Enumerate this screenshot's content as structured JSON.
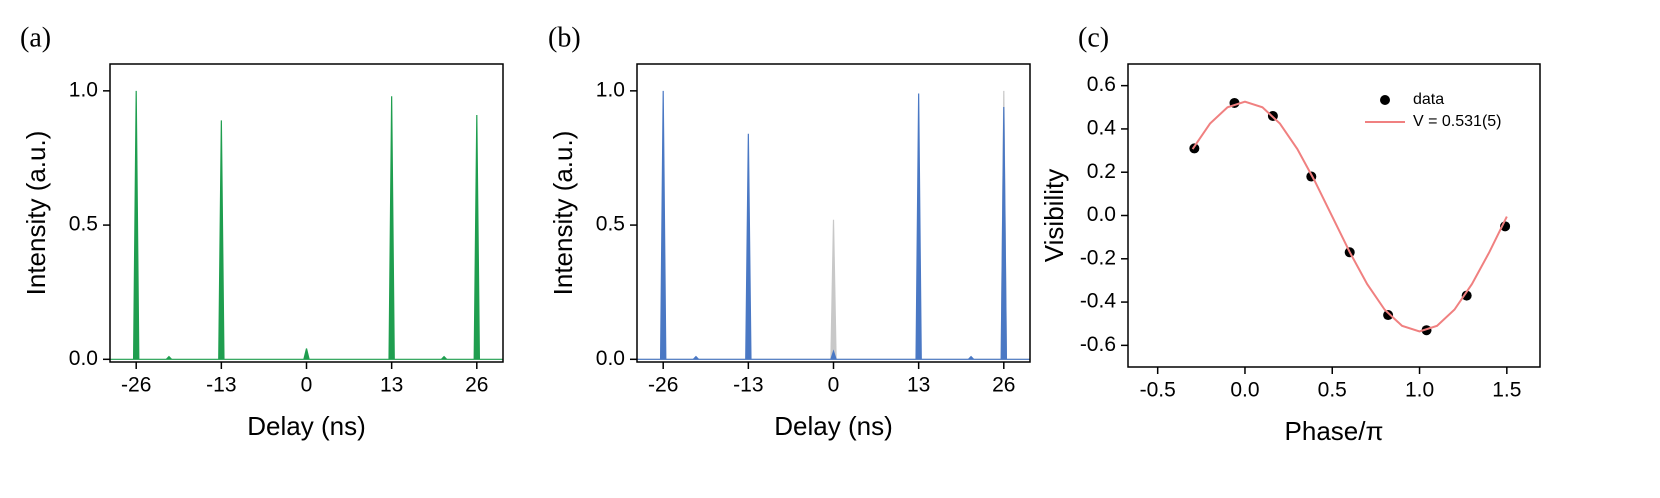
{
  "chart_data": [
    {
      "type": "area",
      "label": "(a)",
      "x_label": "Delay (ns)",
      "y_label": "Intensity (a.u.)",
      "x": [
        -30,
        -26.4,
        -26,
        -25.6,
        -21.4,
        -21,
        -20.6,
        -13.4,
        -13,
        -12.6,
        -0.4,
        0,
        0.4,
        12.6,
        13,
        13.4,
        20.6,
        21,
        21.4,
        25.6,
        26,
        26.4,
        30
      ],
      "series": [
        {
          "color": "#1f9e4f",
          "values": [
            0,
            0,
            1.0,
            0,
            0,
            0.01,
            0,
            0,
            0.89,
            0,
            0,
            0.04,
            0,
            0,
            0.98,
            0,
            0,
            0.01,
            0,
            0,
            0.91,
            0,
            0
          ]
        }
      ],
      "xlim": [
        -30,
        30
      ],
      "xticks": [
        -26,
        -13,
        0,
        13,
        26
      ],
      "ylim": [
        -0.01,
        1.1
      ],
      "yticks": [
        {
          "value": 0,
          "label": "0.0"
        },
        0.5,
        {
          "value": 1,
          "label": "1.0"
        }
      ]
    },
    {
      "type": "area",
      "label": "(b)",
      "x_label": "Delay (ns)",
      "y_label": "Intensity (a.u.)",
      "x": [
        -30,
        -26.4,
        -26,
        -25.6,
        -21.4,
        -21,
        -20.6,
        -13.4,
        -13,
        -12.6,
        -0.4,
        0,
        0.4,
        12.6,
        13,
        13.4,
        20.6,
        21,
        21.4,
        25.6,
        26,
        26.4,
        30
      ],
      "series": [
        {
          "color": "#c8c8c8",
          "values": [
            0,
            0,
            0,
            0,
            0,
            0,
            0,
            0,
            0,
            0,
            0,
            0.52,
            0,
            0,
            0,
            0,
            0,
            0,
            0,
            0,
            1.0,
            0,
            0
          ]
        },
        {
          "color": "#4a78c4",
          "values": [
            0,
            0,
            1.0,
            0,
            0,
            0.01,
            0,
            0,
            0.84,
            0,
            0,
            0.03,
            0,
            0,
            0.99,
            0,
            0,
            0.01,
            0,
            0,
            0.94,
            0,
            0
          ]
        }
      ],
      "xlim": [
        -30,
        30
      ],
      "xticks": [
        -26,
        -13,
        0,
        13,
        26
      ],
      "ylim": [
        -0.01,
        1.1
      ],
      "yticks": [
        {
          "value": 0,
          "label": "0.0"
        },
        0.5,
        {
          "value": 1,
          "label": "1.0"
        }
      ]
    },
    {
      "type": "scatter",
      "label": "(c)",
      "x_label": "Phase/π",
      "y_label": "Visibility",
      "legend": "upper right",
      "series": [
        {
          "name": "data",
          "color": "#000000",
          "x": [
            -0.29,
            -0.06,
            0.16,
            0.38,
            0.6,
            0.82,
            1.04,
            1.27,
            1.49
          ],
          "values": [
            0.31,
            0.52,
            0.46,
            0.18,
            -0.17,
            -0.46,
            -0.53,
            -0.37,
            -0.05
          ],
          "errors": [
            0.015,
            0.015,
            0.015,
            0.015,
            0.015,
            0.015,
            0.015,
            0.015,
            0.015
          ]
        },
        {
          "name": "V = 0.531(5)",
          "color": "#f08080",
          "x": [
            -0.3,
            -0.2,
            -0.1,
            0,
            0.1,
            0.2,
            0.3,
            0.4,
            0.5,
            0.6,
            0.7,
            0.8,
            0.9,
            1.0,
            1.1,
            1.2,
            1.3,
            1.4,
            1.5
          ],
          "values": [
            0.307,
            0.425,
            0.5,
            0.526,
            0.5,
            0.425,
            0.307,
            0.159,
            -0.005,
            -0.169,
            -0.317,
            -0.435,
            -0.51,
            -0.536,
            -0.51,
            -0.435,
            -0.317,
            -0.169,
            -0.005
          ]
        }
      ],
      "xlim": [
        -0.67,
        1.69
      ],
      "xticks": [
        -0.5,
        {
          "value": 0,
          "label": "0.0"
        },
        0.5,
        {
          "value": 1,
          "label": "1.0"
        },
        1.5
      ],
      "ylim": [
        -0.7,
        0.7
      ],
      "yticks": [
        -0.6,
        -0.4,
        -0.2,
        {
          "value": 0,
          "label": "0.0"
        },
        0.2,
        0.4,
        0.6
      ]
    }
  ]
}
